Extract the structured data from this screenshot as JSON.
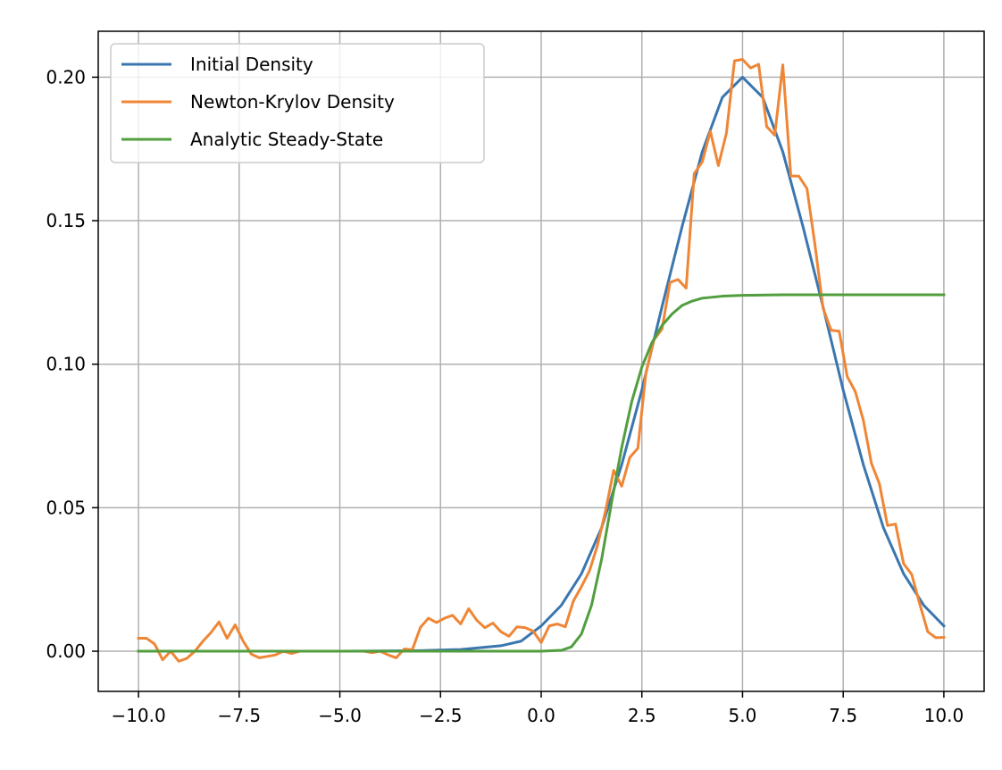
{
  "chart_data": {
    "type": "line",
    "title": "",
    "xlabel": "",
    "ylabel": "",
    "xlim": [
      -11,
      11
    ],
    "ylim": [
      -0.014,
      0.216
    ],
    "grid": true,
    "legend_position": "top-left",
    "x_ticks": [
      -10.0,
      -7.5,
      -5.0,
      -2.5,
      0.0,
      2.5,
      5.0,
      7.5,
      10.0
    ],
    "x_tick_labels": [
      "−10.0",
      "−7.5",
      "−5.0",
      "−2.5",
      "0.0",
      "2.5",
      "5.0",
      "7.5",
      "10.0"
    ],
    "y_ticks": [
      0.0,
      0.05,
      0.1,
      0.15,
      0.2
    ],
    "y_tick_labels": [
      "0.00",
      "0.05",
      "0.10",
      "0.15",
      "0.20"
    ],
    "series": [
      {
        "name": "Initial Density",
        "color": "#3a76af",
        "x": [
          -10,
          -9,
          -8,
          -7,
          -6,
          -5,
          -4,
          -3,
          -2,
          -1,
          -0.5,
          0,
          0.5,
          1,
          1.5,
          2,
          2.5,
          3,
          3.5,
          4,
          4.5,
          5,
          5.5,
          6,
          6.5,
          7,
          7.5,
          8,
          8.5,
          9,
          9.5,
          10
        ],
        "y": [
          0,
          0,
          0,
          0,
          0,
          0,
          0.0001,
          0.0002,
          0.0006,
          0.0019,
          0.0035,
          0.0088,
          0.016,
          0.027,
          0.043,
          0.065,
          0.091,
          0.12,
          0.148,
          0.174,
          0.193,
          0.2,
          0.193,
          0.174,
          0.148,
          0.12,
          0.091,
          0.065,
          0.043,
          0.027,
          0.016,
          0.0088
        ]
      },
      {
        "name": "Newton-Krylov Density",
        "color": "#ef8636",
        "x": [
          -10,
          -9.8,
          -9.6,
          -9.4,
          -9.2,
          -9.0,
          -8.8,
          -8.6,
          -8.4,
          -8.2,
          -8.0,
          -7.8,
          -7.6,
          -7.4,
          -7.2,
          -7.0,
          -6.8,
          -6.6,
          -6.4,
          -6.2,
          -6.0,
          -5.8,
          -5.6,
          -5.4,
          -5.2,
          -5.0,
          -4.8,
          -4.6,
          -4.4,
          -4.2,
          -4.0,
          -3.8,
          -3.6,
          -3.4,
          -3.2,
          -3.0,
          -2.8,
          -2.6,
          -2.4,
          -2.2,
          -2.0,
          -1.8,
          -1.6,
          -1.4,
          -1.2,
          -1.0,
          -0.8,
          -0.6,
          -0.4,
          -0.2,
          0.0,
          0.2,
          0.4,
          0.6,
          0.8,
          1.0,
          1.2,
          1.4,
          1.6,
          1.8,
          2.0,
          2.2,
          2.4,
          2.6,
          2.8,
          3.0,
          3.2,
          3.4,
          3.6,
          3.8,
          4.0,
          4.2,
          4.4,
          4.6,
          4.8,
          5.0,
          5.2,
          5.4,
          5.6,
          5.8,
          6.0,
          6.2,
          6.4,
          6.6,
          6.8,
          7.0,
          7.2,
          7.4,
          7.6,
          7.8,
          8.0,
          8.2,
          8.4,
          8.6,
          8.8,
          9.0,
          9.2,
          9.4,
          9.6,
          9.8,
          10.0
        ],
        "y": [
          0.0045,
          0.0045,
          0.0025,
          -0.003,
          0.0,
          -0.0035,
          -0.0025,
          0.0,
          0.0035,
          0.0065,
          0.0102,
          0.0045,
          0.0092,
          0.0035,
          -0.001,
          -0.0023,
          -0.0018,
          -0.0013,
          0.0,
          -0.0008,
          0.0,
          0.0,
          0.0,
          0.0,
          0.0,
          0.0,
          0.0,
          0.0,
          0.0,
          -0.0005,
          0.0,
          -0.0013,
          -0.0023,
          0.0008,
          0.0005,
          0.0083,
          0.0115,
          0.01,
          0.0115,
          0.0125,
          0.0095,
          0.0148,
          0.0108,
          0.0082,
          0.0098,
          0.0068,
          0.0052,
          0.0085,
          0.0082,
          0.007,
          0.003,
          0.0088,
          0.0095,
          0.0085,
          0.0175,
          0.0225,
          0.028,
          0.037,
          0.049,
          0.063,
          0.0575,
          0.0675,
          0.0707,
          0.0968,
          0.1085,
          0.1122,
          0.1285,
          0.1295,
          0.1265,
          0.1664,
          0.1705,
          0.1812,
          0.1692,
          0.1805,
          0.2057,
          0.2062,
          0.2032,
          0.2045,
          0.1828,
          0.1798,
          0.2043,
          0.1656,
          0.1655,
          0.1612,
          0.1415,
          0.1195,
          0.1118,
          0.1115,
          0.0957,
          0.0905,
          0.0805,
          0.0655,
          0.0583,
          0.0438,
          0.0443,
          0.0305,
          0.0268,
          0.0165,
          0.0068,
          0.0047,
          0.0048
        ]
      },
      {
        "name": "Analytic Steady-State",
        "color": "#519e3e",
        "x": [
          -10,
          -5,
          0,
          0.5,
          0.75,
          1.0,
          1.25,
          1.5,
          1.75,
          2.0,
          2.25,
          2.5,
          2.75,
          3.0,
          3.25,
          3.5,
          3.75,
          4.0,
          4.5,
          5.0,
          6.0,
          8.0,
          10.0
        ],
        "y": [
          0,
          0,
          0,
          0.0003,
          0.0015,
          0.006,
          0.016,
          0.032,
          0.052,
          0.071,
          0.087,
          0.099,
          0.1075,
          0.1135,
          0.1175,
          0.1205,
          0.122,
          0.123,
          0.1237,
          0.124,
          0.1242,
          0.1242,
          0.1242
        ]
      }
    ]
  }
}
